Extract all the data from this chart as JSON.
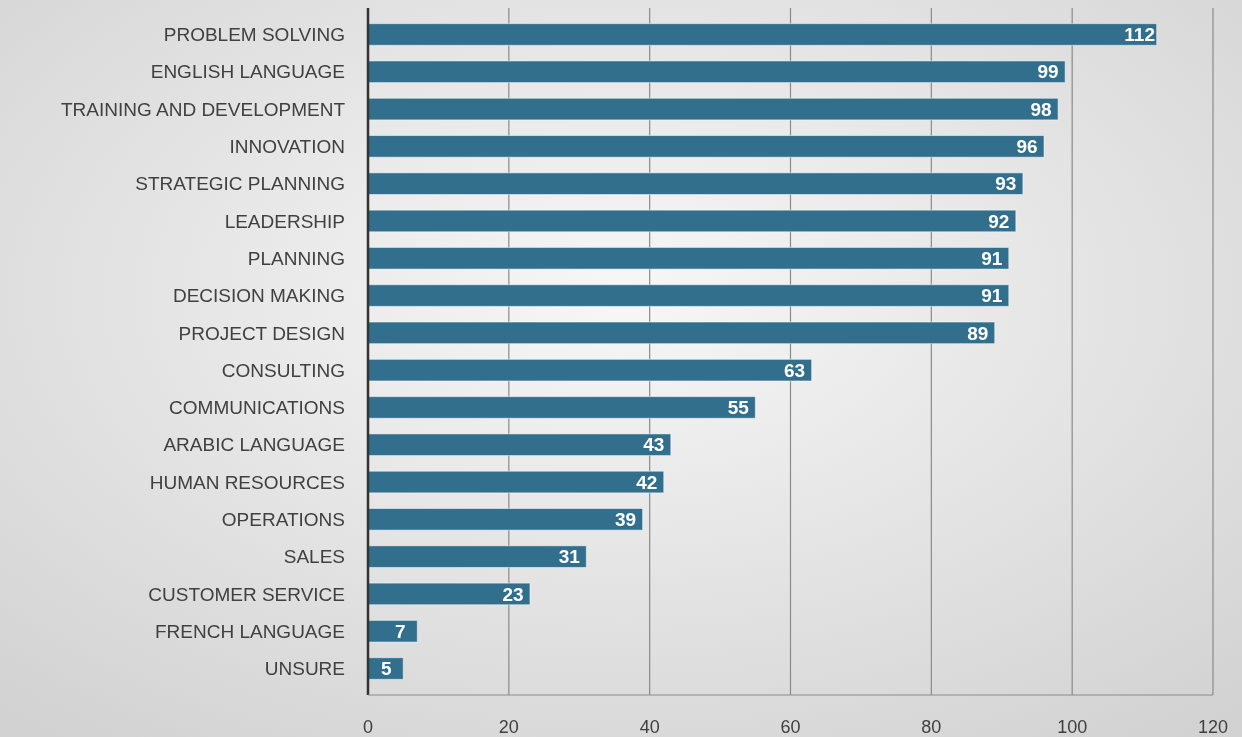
{
  "chart_data": {
    "type": "bar",
    "orientation": "horizontal",
    "categories": [
      "PROBLEM SOLVING",
      "ENGLISH LANGUAGE",
      "TRAINING AND DEVELOPMENT",
      "INNOVATION",
      "STRATEGIC PLANNING",
      "LEADERSHIP",
      "PLANNING",
      "DECISION MAKING",
      "PROJECT DESIGN",
      "CONSULTING",
      "COMMUNICATIONS",
      "ARABIC LANGUAGE",
      "HUMAN RESOURCES",
      "OPERATIONS",
      "SALES",
      "CUSTOMER SERVICE",
      "FRENCH LANGUAGE",
      "UNSURE"
    ],
    "values": [
      112,
      99,
      98,
      96,
      93,
      92,
      91,
      91,
      89,
      63,
      55,
      43,
      42,
      39,
      31,
      23,
      7,
      5
    ],
    "color": "#316f8d",
    "xlim": [
      0,
      120
    ],
    "xticks": [
      0,
      20,
      40,
      60,
      80,
      100,
      120
    ],
    "grid": "x",
    "data_labels": true
  }
}
